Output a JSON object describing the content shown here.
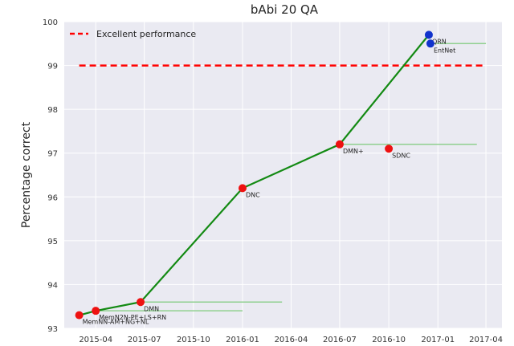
{
  "chart_data": {
    "type": "line",
    "title": "bAbi 20 QA",
    "ylabel": "Percentage correct",
    "xlabel": "",
    "ylim": [
      93,
      100
    ],
    "y_ticks": [
      93,
      94,
      95,
      96,
      97,
      98,
      99,
      100
    ],
    "x_ticks": [
      "2015-04",
      "2015-07",
      "2015-10",
      "2016-01",
      "2016-04",
      "2016-07",
      "2016-10",
      "2017-01",
      "2017-04"
    ],
    "x_start": "2015-02-01",
    "x_end": "2017-05-01",
    "reference": {
      "name": "Excellent performance",
      "value": 99.0,
      "x_from": "2015-03-01",
      "x_to": "2017-04-01",
      "color": "#ff0000"
    },
    "frontier_color": "#138a13",
    "range_color": "#90d090",
    "legend": [
      {
        "label": "Excellent performance",
        "style": "dashed",
        "color": "#ff0000"
      }
    ],
    "points": [
      {
        "label": "MemNN-AM+NG+NL",
        "date": "2015-03-01",
        "value": 93.3,
        "color": "#ee1111",
        "frontier": true,
        "range_end": null
      },
      {
        "label": "MemN2N-PE+LS+RN",
        "date": "2015-04-01",
        "value": 93.4,
        "color": "#ee1111",
        "frontier": true,
        "range_end": "2016-01-01"
      },
      {
        "label": "DMN",
        "date": "2015-06-24",
        "value": 93.6,
        "color": "#ee1111",
        "frontier": true,
        "range_end": "2016-03-15"
      },
      {
        "label": "DNC",
        "date": "2016-01-01",
        "value": 96.2,
        "color": "#ee1111",
        "frontier": true,
        "range_end": null
      },
      {
        "label": "DMN+",
        "date": "2016-07-01",
        "value": 97.2,
        "color": "#ee1111",
        "frontier": true,
        "range_end": "2017-03-15"
      },
      {
        "label": "SDNC",
        "date": "2016-10-01",
        "value": 97.1,
        "color": "#ee1111",
        "frontier": false,
        "range_end": null
      },
      {
        "label": "QRN",
        "date": "2016-12-15",
        "value": 99.7,
        "color": "#1133cc",
        "frontier": true,
        "range_end": null
      },
      {
        "label": "EntNet",
        "date": "2016-12-18",
        "value": 99.5,
        "color": "#1133cc",
        "frontier": false,
        "range_end": "2017-04-01"
      }
    ]
  }
}
